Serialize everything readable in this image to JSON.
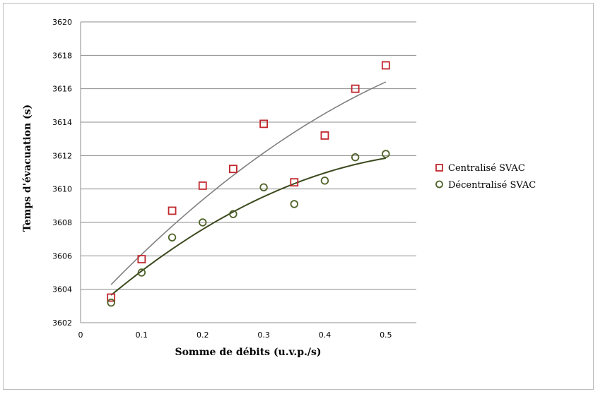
{
  "chart_data": {
    "type": "scatter",
    "xlabel": "Somme de débits (u.v.p./s)",
    "ylabel": "Temps d'évacuation (s)",
    "xlim": [
      0,
      0.55
    ],
    "ylim": [
      3602,
      3620
    ],
    "x_ticks": [
      0,
      0.1,
      0.2,
      0.3,
      0.4,
      0.5
    ],
    "x_tick_labels": [
      "0",
      "0.1",
      "0.2",
      "0.3",
      "0.4",
      "0.5"
    ],
    "y_ticks": [
      3602,
      3604,
      3606,
      3608,
      3610,
      3612,
      3614,
      3616,
      3618,
      3620
    ],
    "y_tick_labels": [
      "3602",
      "3604",
      "3606",
      "3608",
      "3610",
      "3612",
      "3614",
      "3616",
      "3618",
      "3620"
    ],
    "grid": "horizontal",
    "legend_position": "right",
    "series": [
      {
        "name": "Centralisé SVAC",
        "marker": "square",
        "color": "#c0272d",
        "x": [
          0.05,
          0.1,
          0.15,
          0.2,
          0.25,
          0.3,
          0.35,
          0.4,
          0.45,
          0.5
        ],
        "y": [
          3603.5,
          3605.8,
          3608.7,
          3610.2,
          3611.2,
          3613.9,
          3610.4,
          3613.2,
          3616.0,
          3617.4
        ],
        "trendline": {
          "type": "polynomial",
          "color": "#808080",
          "x": [
            0.05,
            0.5
          ],
          "y_start": 3604.3,
          "y_end": 3616.4
        }
      },
      {
        "name": "Décentralisé SVAC",
        "marker": "circle",
        "color": "#4f6228",
        "x": [
          0.05,
          0.1,
          0.15,
          0.2,
          0.25,
          0.3,
          0.35,
          0.4,
          0.45,
          0.5
        ],
        "y": [
          3603.2,
          3605.0,
          3607.1,
          3608.0,
          3608.5,
          3610.1,
          3609.1,
          3610.5,
          3611.9,
          3612.1
        ],
        "trendline": {
          "type": "polynomial",
          "color": "#3b4a1e",
          "x": [
            0.05,
            0.5
          ],
          "y_start": 3603.4,
          "y_end": 3611.9
        }
      }
    ]
  }
}
